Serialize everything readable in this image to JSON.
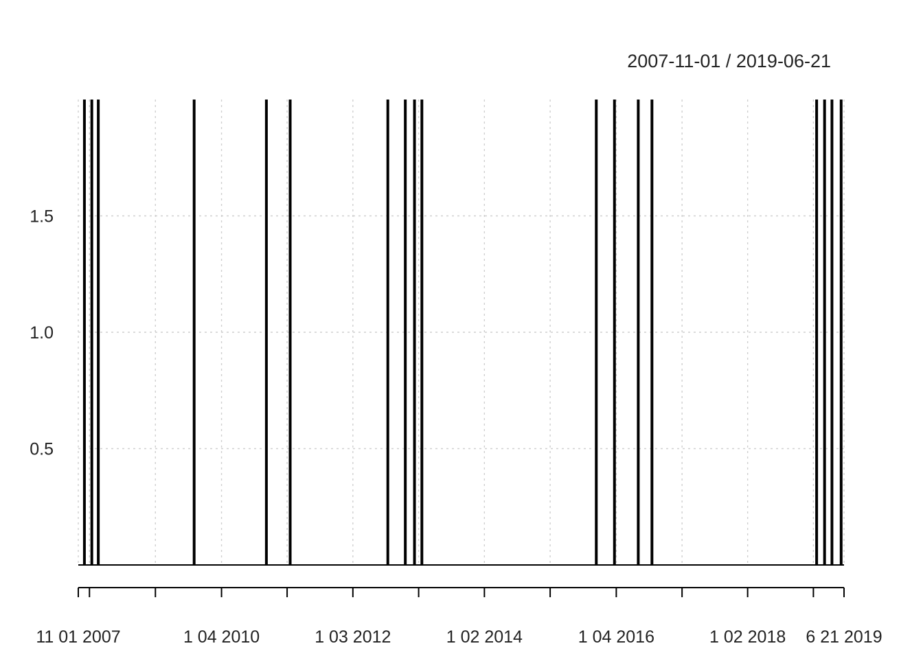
{
  "chart_data": {
    "type": "line",
    "title": "",
    "range_label": "2007-11-01 / 2019-06-21",
    "xlabel": "",
    "ylabel": "",
    "x_range": [
      "2007-11-01",
      "2019-06-21"
    ],
    "ylim": [
      0,
      2
    ],
    "y_ticks": [
      0.5,
      1.0,
      1.5
    ],
    "y_tick_labels": [
      "0.5",
      "1.0",
      "1.5"
    ],
    "x_ticks": [
      "2007-11-01",
      "2008-01-02",
      "2009-01-02",
      "2010-01-04",
      "2011-01-03",
      "2012-01-03",
      "2013-01-02",
      "2014-01-02",
      "2015-01-02",
      "2016-01-04",
      "2017-01-03",
      "2018-01-02",
      "2019-01-02",
      "2019-06-21"
    ],
    "x_tick_labels": [
      {
        "date": "2007-11-01",
        "label": "11 01 2007"
      },
      {
        "date": "2010-01-04",
        "label": "1 04 2010"
      },
      {
        "date": "2012-01-03",
        "label": "1 03 2012"
      },
      {
        "date": "2014-01-02",
        "label": "1 02 2014"
      },
      {
        "date": "2016-01-04",
        "label": "1 04 2016"
      },
      {
        "date": "2018-01-02",
        "label": "1 02 2018"
      },
      {
        "date": "2019-06-21",
        "label": "6 21 2019"
      }
    ],
    "grid": true,
    "baseline_value": 0,
    "series": [
      {
        "color": "#000000",
        "spike_value": 2,
        "spike_dates": [
          "2007-12-05",
          "2008-01-15",
          "2008-02-20",
          "2009-08-05",
          "2010-09-10",
          "2011-01-20",
          "2012-07-15",
          "2012-10-20",
          "2012-12-10",
          "2013-01-20",
          "2015-09-15",
          "2015-12-25",
          "2016-05-05",
          "2016-07-20",
          "2019-01-20",
          "2019-03-05",
          "2019-04-15",
          "2019-06-05"
        ]
      }
    ]
  }
}
